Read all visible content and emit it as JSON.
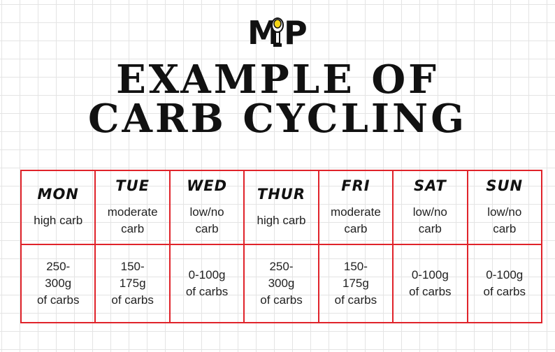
{
  "logo": {
    "letters": [
      "M",
      "P"
    ]
  },
  "title": {
    "line1": "EXAMPLE OF",
    "line2": "CARB CYCLING"
  },
  "colors": {
    "grid_border": "#e0232a",
    "text": "#222222",
    "mic_accent": "#f5d516"
  },
  "schedule": [
    {
      "day": "MON",
      "type": "high carb",
      "amount": "250-\n300g\nof carbs"
    },
    {
      "day": "TUE",
      "type": "moderate\ncarb",
      "amount": "150-\n175g\nof carbs"
    },
    {
      "day": "WED",
      "type": "low/no\ncarb",
      "amount": "0-100g\nof carbs"
    },
    {
      "day": "THUR",
      "type": "high carb",
      "amount": "250-\n300g\nof carbs"
    },
    {
      "day": "FRI",
      "type": "moderate\ncarb",
      "amount": "150-\n175g\nof carbs"
    },
    {
      "day": "SAT",
      "type": "low/no\ncarb",
      "amount": "0-100g\nof carbs"
    },
    {
      "day": "SUN",
      "type": "low/no\ncarb",
      "amount": "0-100g\nof carbs"
    }
  ]
}
